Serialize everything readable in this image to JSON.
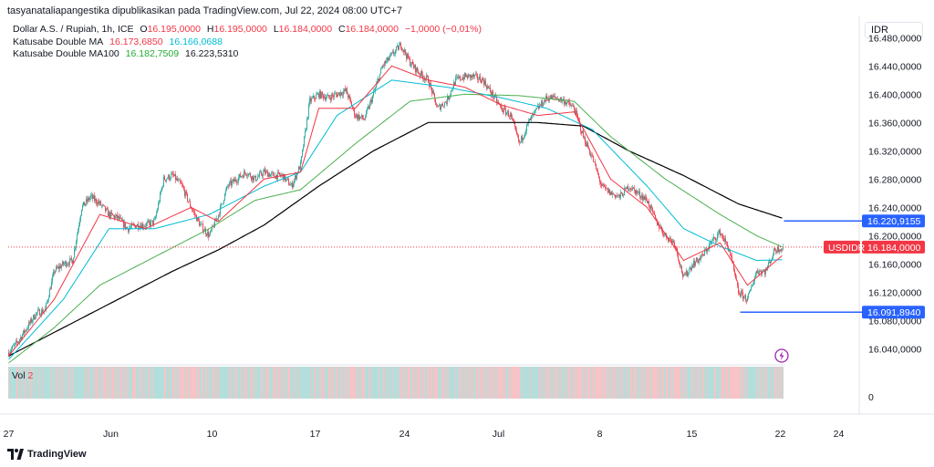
{
  "header": {
    "publish_line": "tasyanataliapangestika dipublikasikan pada TradingView.com, Jul 22, 2024 08:00 UTC+7",
    "symbol": "Dollar A.S. / Rupiah, 1h, ICE",
    "ohlc": {
      "o_label": "O",
      "o": "16.195,0000",
      "h_label": "H",
      "h": "16.195,0000",
      "l_label": "L",
      "l": "16.184,0000",
      "c_label": "C",
      "c": "16.184,0000",
      "change": "−1,0000 (−0,01%)"
    },
    "ma_name": "Katusabe Double MA",
    "ma_val1": "16.173,6850",
    "ma_val2": "16.166,0688",
    "ma100_name": "Katusabe Double MA100",
    "ma100_val1": "16.182,7509",
    "ma100_val2": "16.223,5310",
    "currency": "IDR"
  },
  "volume": {
    "label": "Vol",
    "value": "2",
    "axis_zero": "0"
  },
  "footer": {
    "brand": "TradingView"
  },
  "colors": {
    "up": "#26a69a",
    "down": "#f23645",
    "ma_fast": "#f23645",
    "ma_mid": "#00bcd4",
    "ma_green": "#4caf50",
    "ma_black": "#000000",
    "line_blue": "#2962ff",
    "vol_up": "#b2dfdb",
    "vol_down": "#f7c3c6"
  },
  "chart_data": {
    "type": "candlestick",
    "ylim": [
      16020,
      16510
    ],
    "y_ticks": [
      "16.480,0000",
      "16.440,0000",
      "16.400,0000",
      "16.360,0000",
      "16.320,0000",
      "16.280,0000",
      "16.240,0000",
      "16.200,0000",
      "16.160,0000",
      "16.120,0000",
      "16.080,0000",
      "16.040,0000"
    ],
    "y_tick_values": [
      16480,
      16440,
      16400,
      16360,
      16320,
      16280,
      16240,
      16200,
      16160,
      16120,
      16080,
      16040
    ],
    "x_ticks": [
      "27",
      "Jun",
      "10",
      "17",
      "24",
      "Jul",
      "8",
      "15",
      "22",
      "24"
    ],
    "x_tick_bars": [
      0,
      112,
      223,
      336,
      434,
      537,
      648,
      749,
      846,
      910
    ],
    "bar_count": 850,
    "close_path": [
      [
        0,
        16035
      ],
      [
        10,
        16050
      ],
      [
        20,
        16070
      ],
      [
        30,
        16090
      ],
      [
        40,
        16095
      ],
      [
        50,
        16150
      ],
      [
        60,
        16160
      ],
      [
        70,
        16165
      ],
      [
        80,
        16240
      ],
      [
        90,
        16255
      ],
      [
        100,
        16245
      ],
      [
        110,
        16230
      ],
      [
        120,
        16225
      ],
      [
        130,
        16210
      ],
      [
        140,
        16215
      ],
      [
        150,
        16215
      ],
      [
        160,
        16220
      ],
      [
        170,
        16280
      ],
      [
        180,
        16285
      ],
      [
        190,
        16270
      ],
      [
        200,
        16240
      ],
      [
        210,
        16215
      ],
      [
        220,
        16200
      ],
      [
        230,
        16230
      ],
      [
        240,
        16270
      ],
      [
        250,
        16280
      ],
      [
        260,
        16290
      ],
      [
        270,
        16280
      ],
      [
        280,
        16290
      ],
      [
        290,
        16285
      ],
      [
        300,
        16285
      ],
      [
        310,
        16270
      ],
      [
        320,
        16300
      ],
      [
        330,
        16390
      ],
      [
        340,
        16400
      ],
      [
        350,
        16395
      ],
      [
        360,
        16400
      ],
      [
        370,
        16405
      ],
      [
        380,
        16370
      ],
      [
        390,
        16365
      ],
      [
        400,
        16400
      ],
      [
        410,
        16440
      ],
      [
        420,
        16455
      ],
      [
        430,
        16470
      ],
      [
        440,
        16445
      ],
      [
        450,
        16430
      ],
      [
        460,
        16420
      ],
      [
        470,
        16380
      ],
      [
        480,
        16390
      ],
      [
        490,
        16420
      ],
      [
        500,
        16425
      ],
      [
        510,
        16425
      ],
      [
        520,
        16420
      ],
      [
        530,
        16400
      ],
      [
        540,
        16380
      ],
      [
        550,
        16370
      ],
      [
        560,
        16330
      ],
      [
        570,
        16360
      ],
      [
        580,
        16380
      ],
      [
        590,
        16395
      ],
      [
        600,
        16395
      ],
      [
        610,
        16390
      ],
      [
        620,
        16380
      ],
      [
        630,
        16340
      ],
      [
        640,
        16310
      ],
      [
        650,
        16270
      ],
      [
        660,
        16260
      ],
      [
        670,
        16255
      ],
      [
        680,
        16270
      ],
      [
        690,
        16260
      ],
      [
        700,
        16250
      ],
      [
        710,
        16220
      ],
      [
        720,
        16200
      ],
      [
        730,
        16190
      ],
      [
        740,
        16140
      ],
      [
        750,
        16160
      ],
      [
        760,
        16170
      ],
      [
        770,
        16190
      ],
      [
        780,
        16205
      ],
      [
        790,
        16180
      ],
      [
        800,
        16120
      ],
      [
        810,
        16110
      ],
      [
        820,
        16150
      ],
      [
        830,
        16150
      ],
      [
        840,
        16180
      ],
      [
        850,
        16184
      ]
    ],
    "ma_fast_path": [
      [
        0,
        16030
      ],
      [
        50,
        16110
      ],
      [
        100,
        16230
      ],
      [
        150,
        16210
      ],
      [
        200,
        16240
      ],
      [
        230,
        16220
      ],
      [
        280,
        16280
      ],
      [
        320,
        16290
      ],
      [
        340,
        16380
      ],
      [
        380,
        16380
      ],
      [
        420,
        16440
      ],
      [
        460,
        16420
      ],
      [
        500,
        16410
      ],
      [
        540,
        16385
      ],
      [
        580,
        16370
      ],
      [
        620,
        16375
      ],
      [
        660,
        16280
      ],
      [
        700,
        16240
      ],
      [
        740,
        16165
      ],
      [
        780,
        16190
      ],
      [
        810,
        16130
      ],
      [
        850,
        16174
      ]
    ],
    "ma_mid_path": [
      [
        0,
        16025
      ],
      [
        60,
        16110
      ],
      [
        110,
        16210
      ],
      [
        160,
        16210
      ],
      [
        220,
        16230
      ],
      [
        280,
        16270
      ],
      [
        320,
        16290
      ],
      [
        360,
        16370
      ],
      [
        420,
        16420
      ],
      [
        480,
        16410
      ],
      [
        540,
        16395
      ],
      [
        590,
        16380
      ],
      [
        640,
        16350
      ],
      [
        700,
        16270
      ],
      [
        740,
        16210
      ],
      [
        780,
        16185
      ],
      [
        820,
        16165
      ],
      [
        850,
        16166
      ]
    ],
    "ma_green_path": [
      [
        0,
        16020
      ],
      [
        50,
        16070
      ],
      [
        100,
        16130
      ],
      [
        160,
        16170
      ],
      [
        220,
        16210
      ],
      [
        270,
        16250
      ],
      [
        320,
        16265
      ],
      [
        380,
        16330
      ],
      [
        440,
        16390
      ],
      [
        500,
        16400
      ],
      [
        560,
        16398
      ],
      [
        620,
        16390
      ],
      [
        660,
        16340
      ],
      [
        720,
        16280
      ],
      [
        780,
        16230
      ],
      [
        820,
        16200
      ],
      [
        850,
        16183
      ]
    ],
    "ma_black_path": [
      [
        0,
        16030
      ],
      [
        60,
        16070
      ],
      [
        120,
        16110
      ],
      [
        180,
        16150
      ],
      [
        230,
        16180
      ],
      [
        280,
        16215
      ],
      [
        340,
        16270
      ],
      [
        400,
        16320
      ],
      [
        460,
        16360
      ],
      [
        520,
        16360
      ],
      [
        580,
        16360
      ],
      [
        630,
        16355
      ],
      [
        680,
        16320
      ],
      [
        740,
        16285
      ],
      [
        800,
        16245
      ],
      [
        850,
        16224
      ]
    ],
    "last_price_label": "16.184,0000",
    "last_price": 16184,
    "symbol_tag": "USDIDR",
    "upper_line_label": "16.220,9155",
    "upper_line": 16220.9155,
    "upper_line_start_bar": 850,
    "lower_line_label": "16.091,8940",
    "lower_line": 16091.894,
    "lower_line_start_bar": 802
  }
}
